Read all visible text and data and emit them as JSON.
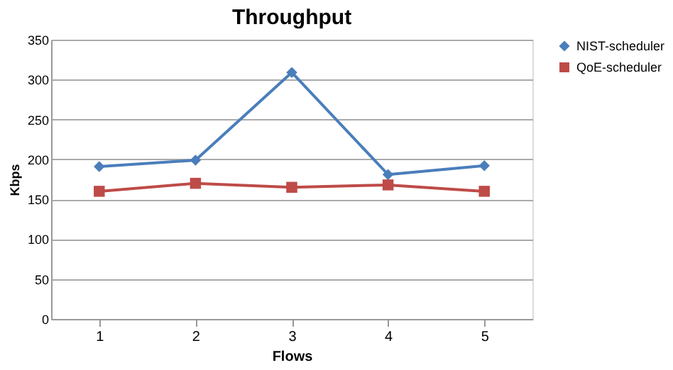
{
  "chart_data": {
    "type": "line",
    "title": "Throughput",
    "xlabel": "Flows",
    "ylabel": "Kbps",
    "categories": [
      "1",
      "2",
      "3",
      "4",
      "5"
    ],
    "series": [
      {
        "name": "NIST-scheduler",
        "color": "#4a7ebb",
        "marker": "diamond",
        "values": [
          191,
          199,
          309,
          181,
          192
        ]
      },
      {
        "name": "QoE-scheduler",
        "color": "#be4b48",
        "marker": "square",
        "values": [
          160,
          170,
          165,
          168,
          160
        ]
      }
    ],
    "ylim": [
      0,
      350
    ],
    "yticks": [
      0,
      50,
      100,
      150,
      200,
      250,
      300,
      350
    ],
    "grid": "y",
    "legend": "right"
  }
}
